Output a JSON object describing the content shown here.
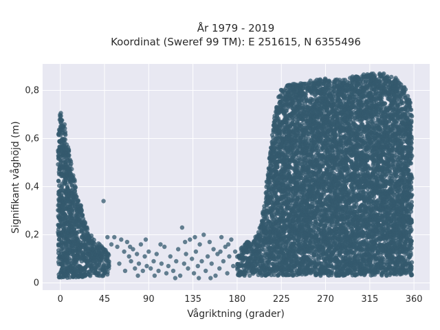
{
  "chart_data": {
    "type": "scatter",
    "title_line1": "År 1979 - 2019",
    "title_line2": "Koordinat (Sweref 99 TM): E 251615, N 6355496",
    "xlabel": "Vågriktning (grader)",
    "ylabel": "Signifikant våghöjd (m)",
    "xlim": [
      -18,
      376
    ],
    "ylim": [
      -0.03,
      0.91
    ],
    "xticks": [
      0,
      45,
      90,
      135,
      180,
      225,
      270,
      315,
      360
    ],
    "yticks": [
      0,
      0.2,
      0.4,
      0.6,
      0.8
    ],
    "ytick_labels": [
      "0",
      "0,2",
      "0,4",
      "0,6",
      "0,8"
    ],
    "grid": true,
    "marker_color": "#34596e",
    "plot_bg": "#e8e8f2",
    "envelope_upper": [
      [
        -2,
        0.62
      ],
      [
        0,
        0.72
      ],
      [
        2,
        0.68
      ],
      [
        4,
        0.66
      ],
      [
        6,
        0.62
      ],
      [
        8,
        0.58
      ],
      [
        10,
        0.54
      ],
      [
        13,
        0.46
      ],
      [
        16,
        0.4
      ],
      [
        19,
        0.36
      ],
      [
        22,
        0.3
      ],
      [
        25,
        0.26
      ],
      [
        28,
        0.23
      ],
      [
        31,
        0.2
      ],
      [
        35,
        0.18
      ],
      [
        40,
        0.16
      ],
      [
        45,
        0.14
      ],
      [
        50,
        0.12
      ],
      [
        180,
        0.12
      ],
      [
        185,
        0.15
      ],
      [
        190,
        0.17
      ],
      [
        195,
        0.18
      ],
      [
        200,
        0.2
      ],
      [
        205,
        0.26
      ],
      [
        208,
        0.34
      ],
      [
        211,
        0.45
      ],
      [
        214,
        0.56
      ],
      [
        217,
        0.66
      ],
      [
        220,
        0.74
      ],
      [
        224,
        0.8
      ],
      [
        230,
        0.82
      ],
      [
        240,
        0.83
      ],
      [
        255,
        0.84
      ],
      [
        270,
        0.85
      ],
      [
        285,
        0.85
      ],
      [
        300,
        0.86
      ],
      [
        315,
        0.87
      ],
      [
        330,
        0.87
      ],
      [
        340,
        0.86
      ],
      [
        345,
        0.84
      ],
      [
        350,
        0.82
      ],
      [
        355,
        0.77
      ],
      [
        358,
        0.72
      ]
    ],
    "envelope_lower": [
      [
        -2,
        0.02
      ],
      [
        50,
        0.03
      ],
      [
        180,
        0.03
      ],
      [
        360,
        0.03
      ]
    ],
    "sparse_points": [
      [
        44,
        0.34
      ],
      [
        48,
        0.19
      ],
      [
        52,
        0.16
      ],
      [
        55,
        0.19
      ],
      [
        58,
        0.15
      ],
      [
        62,
        0.18
      ],
      [
        65,
        0.13
      ],
      [
        68,
        0.17
      ],
      [
        70,
        0.11
      ],
      [
        72,
        0.09
      ],
      [
        74,
        0.14
      ],
      [
        76,
        0.06
      ],
      [
        78,
        0.12
      ],
      [
        80,
        0.08
      ],
      [
        82,
        0.16
      ],
      [
        84,
        0.05
      ],
      [
        86,
        0.11
      ],
      [
        88,
        0.07
      ],
      [
        90,
        0.13
      ],
      [
        92,
        0.06
      ],
      [
        95,
        0.09
      ],
      [
        98,
        0.12
      ],
      [
        100,
        0.05
      ],
      [
        103,
        0.08
      ],
      [
        106,
        0.15
      ],
      [
        108,
        0.04
      ],
      [
        110,
        0.07
      ],
      [
        112,
        0.11
      ],
      [
        115,
        0.05
      ],
      [
        118,
        0.09
      ],
      [
        120,
        0.14
      ],
      [
        122,
        0.03
      ],
      [
        124,
        0.23
      ],
      [
        126,
        0.08
      ],
      [
        128,
        0.12
      ],
      [
        130,
        0.06
      ],
      [
        132,
        0.18
      ],
      [
        134,
        0.1
      ],
      [
        136,
        0.04
      ],
      [
        138,
        0.13
      ],
      [
        140,
        0.07
      ],
      [
        142,
        0.16
      ],
      [
        144,
        0.09
      ],
      [
        146,
        0.2
      ],
      [
        148,
        0.05
      ],
      [
        150,
        0.11
      ],
      [
        152,
        0.17
      ],
      [
        154,
        0.08
      ],
      [
        156,
        0.14
      ],
      [
        158,
        0.03
      ],
      [
        160,
        0.12
      ],
      [
        162,
        0.06
      ],
      [
        164,
        0.19
      ],
      [
        166,
        0.09
      ],
      [
        168,
        0.15
      ],
      [
        170,
        0.04
      ],
      [
        172,
        0.11
      ],
      [
        174,
        0.18
      ],
      [
        176,
        0.07
      ],
      [
        178,
        0.13
      ],
      [
        60,
        0.08
      ],
      [
        66,
        0.05
      ],
      [
        71,
        0.15
      ],
      [
        79,
        0.03
      ],
      [
        87,
        0.18
      ],
      [
        96,
        0.03
      ],
      [
        102,
        0.16
      ],
      [
        117,
        0.02
      ],
      [
        127,
        0.17
      ],
      [
        137,
        0.19
      ],
      [
        141,
        0.02
      ],
      [
        153,
        0.02
      ],
      [
        163,
        0.13
      ],
      [
        171,
        0.16
      ]
    ]
  }
}
